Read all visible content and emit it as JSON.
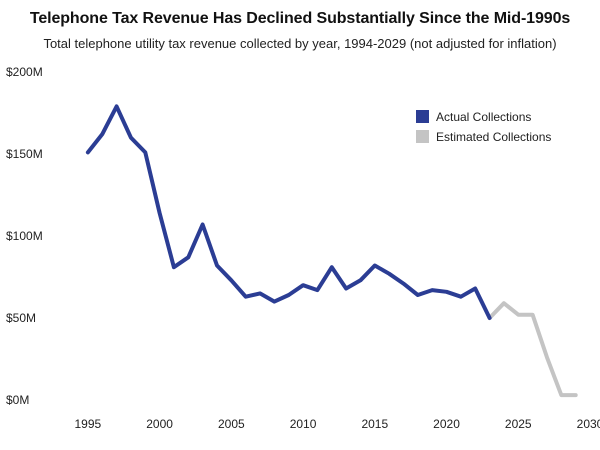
{
  "chart_data": {
    "type": "line",
    "title": "Telephone Tax Revenue Has Declined Substantially Since the Mid-1990s",
    "subtitle": "Total telephone utility tax revenue collected by year, 1994-2029 (not adjusted for inflation)",
    "xlabel": "",
    "ylabel": "",
    "xlim": [
      1992.5,
      2030
    ],
    "ylim": [
      0,
      200
    ],
    "x_ticks": [
      1995,
      2000,
      2005,
      2010,
      2015,
      2020,
      2025,
      2030
    ],
    "x_tick_labels": [
      "1995",
      "2000",
      "2005",
      "2010",
      "2015",
      "2020",
      "2025",
      "2030"
    ],
    "y_ticks": [
      0,
      50,
      100,
      150,
      200
    ],
    "y_tick_labels": [
      "$0M",
      "$50M",
      "$100M",
      "$150M",
      "$200M"
    ],
    "grid": false,
    "legend_position": "top-right",
    "series": [
      {
        "name": "Actual Collections",
        "color": "#2b3d94",
        "x": [
          1995,
          1996,
          1997,
          1998,
          1999,
          2000,
          2001,
          2002,
          2003,
          2004,
          2005,
          2006,
          2007,
          2008,
          2009,
          2010,
          2011,
          2012,
          2013,
          2014,
          2015,
          2016,
          2017,
          2018,
          2019,
          2020,
          2021,
          2022,
          2023
        ],
        "values": [
          151,
          162,
          179,
          160,
          151,
          114,
          81,
          87,
          107,
          82,
          73,
          63,
          65,
          60,
          64,
          70,
          67,
          81,
          68,
          73,
          82,
          77,
          71,
          64,
          67,
          66,
          63,
          68,
          50
        ]
      },
      {
        "name": "Estimated Collections",
        "color": "#c4c4c4",
        "x": [
          2023,
          2024,
          2025,
          2026,
          2027,
          2028,
          2029
        ],
        "values": [
          50,
          59,
          52,
          52,
          26,
          3,
          3
        ]
      }
    ]
  }
}
